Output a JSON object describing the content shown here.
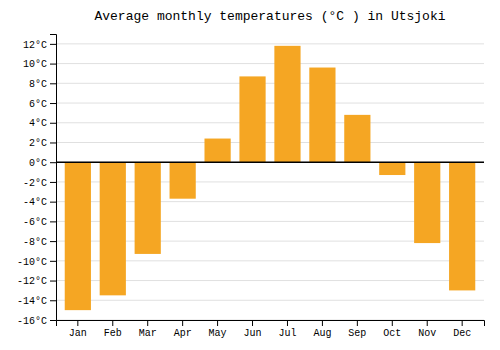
{
  "chart_data": {
    "type": "bar",
    "title": "Average monthly temperatures (°C ) in Utsjoki",
    "categories": [
      "Jan",
      "Feb",
      "Mar",
      "Apr",
      "May",
      "Jun",
      "Jul",
      "Aug",
      "Sep",
      "Oct",
      "Nov",
      "Dec"
    ],
    "values": [
      -15,
      -13.5,
      -9.3,
      -3.7,
      2.4,
      8.7,
      11.8,
      9.6,
      4.8,
      -1.3,
      -8.2,
      -13.0
    ],
    "color": "#F5A623",
    "ylim": [
      -16,
      13
    ],
    "yticks": [
      {
        "value": -16,
        "label": "-16°C"
      },
      {
        "value": -14,
        "label": "-14°C"
      },
      {
        "value": -12,
        "label": "-12°C"
      },
      {
        "value": -10,
        "label": "-10°C"
      },
      {
        "value": -8,
        "label": "-8°C"
      },
      {
        "value": -6,
        "label": "-6°C"
      },
      {
        "value": -4,
        "label": "-4°C"
      },
      {
        "value": -2,
        "label": "-2°C"
      },
      {
        "value": 0,
        "label": "0°C"
      },
      {
        "value": 2,
        "label": "2°C"
      },
      {
        "value": 4,
        "label": "4°C"
      },
      {
        "value": 6,
        "label": "6°C"
      },
      {
        "value": 8,
        "label": "8°C"
      },
      {
        "value": 10,
        "label": "10°C"
      },
      {
        "value": 12,
        "label": "12°C"
      }
    ],
    "grid": true
  }
}
